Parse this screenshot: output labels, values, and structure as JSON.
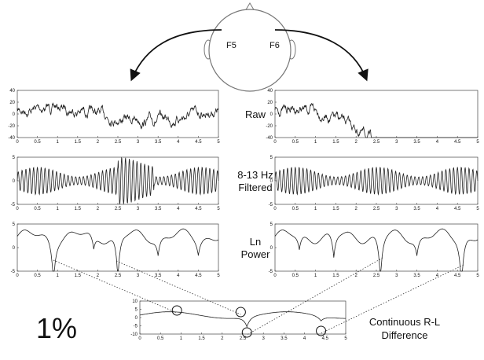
{
  "head": {
    "electrodes": [
      "F5",
      "F6"
    ]
  },
  "xlim": [
    0,
    5
  ],
  "xticks": [
    0,
    0.5,
    1,
    1.5,
    2,
    2.5,
    3,
    3.5,
    4,
    4.5,
    5
  ],
  "rows": [
    {
      "label": [
        "Raw"
      ],
      "ylim": [
        -40,
        40
      ],
      "yticks": [
        40,
        20,
        0,
        -20,
        -40
      ]
    },
    {
      "label": [
        "8-13 Hz",
        "Filtered"
      ],
      "ylim": [
        -5,
        5
      ],
      "yticks": [
        5,
        0,
        -5
      ]
    },
    {
      "label": [
        "Ln",
        "Power"
      ],
      "ylim": [
        -5,
        5
      ],
      "yticks": [
        5,
        0,
        -5
      ]
    }
  ],
  "difference": {
    "label": [
      "Continuous R-L",
      "Difference"
    ],
    "ylim": [
      -10,
      10
    ],
    "yticks": [
      10,
      5,
      0,
      -5,
      -10
    ]
  },
  "footnote": "1%"
}
